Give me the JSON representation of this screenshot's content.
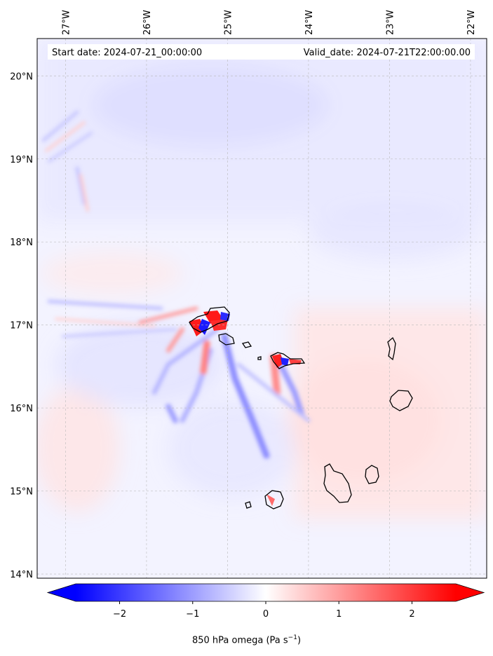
{
  "header": {
    "start_date": "Start date: 2024-07-21_00:00:00",
    "valid_date": "Valid_date: 2024-07-21T22:00:00.00"
  },
  "map": {
    "lon_range": [
      -27.35,
      -21.8
    ],
    "lat_range": [
      13.95,
      20.45
    ],
    "lon_ticks": [
      "27°W",
      "26°W",
      "25°W",
      "24°W",
      "23°W",
      "22°W"
    ],
    "lon_values": [
      -27,
      -26,
      -25,
      -24,
      -23,
      -22
    ],
    "lat_ticks": [
      "20°N",
      "19°N",
      "18°N",
      "17°N",
      "16°N",
      "15°N",
      "14°N"
    ],
    "lat_values": [
      20,
      19,
      18,
      17,
      16,
      15,
      14
    ],
    "gridlines": true,
    "islands": [
      "Santo Antão",
      "São Vicente",
      "Santa Luzia",
      "São Nicolau",
      "Sal",
      "Boa Vista",
      "Maio",
      "Santiago",
      "Fogo",
      "Brava"
    ]
  },
  "colorbar": {
    "ticks": [
      "−2",
      "−1",
      "0",
      "1",
      "2"
    ],
    "tick_values": [
      -2,
      -1,
      0,
      1,
      2
    ],
    "range": [
      -2.6,
      2.6
    ],
    "negative_color": "#0000ff",
    "positive_color": "#ff0000",
    "label_main": "850 hPa omega (Pa s",
    "label_sup": "−1",
    "label_end": ")"
  },
  "colors": {
    "background_field": "#f4f4ff",
    "coastline": "#000000"
  }
}
